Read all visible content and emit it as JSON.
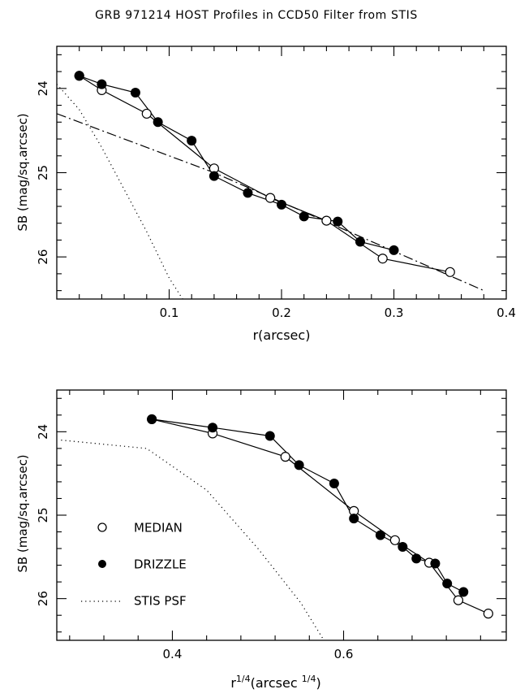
{
  "title": "GRB 971214 HOST Profiles in CCD50 Filter from STIS",
  "chart_data": [
    {
      "type": "line",
      "xlabel": "r(arcsec)",
      "ylabel": "SB (mag/sq.arcsec)",
      "xlim": [
        0.0,
        0.4
      ],
      "ylim": [
        26.5,
        23.5
      ],
      "y_inverted": true,
      "xticks": [
        0.1,
        0.2,
        0.3,
        0.4
      ],
      "xtick_labels": [
        "0.1",
        "0.2",
        "0.3",
        "0.4"
      ],
      "yticks": [
        24,
        25,
        26
      ],
      "ytick_labels": [
        "24",
        "25",
        "26"
      ],
      "series": [
        {
          "name": "MEDIAN",
          "marker": "open-circle",
          "x": [
            0.02,
            0.04,
            0.08,
            0.14,
            0.19,
            0.24,
            0.29,
            0.35
          ],
          "y": [
            23.85,
            24.02,
            24.3,
            24.95,
            25.3,
            25.57,
            26.02,
            26.18
          ]
        },
        {
          "name": "DRIZZLE",
          "marker": "filled-circle",
          "x": [
            0.02,
            0.04,
            0.07,
            0.09,
            0.12,
            0.14,
            0.17,
            0.2,
            0.22,
            0.25,
            0.27,
            0.3
          ],
          "y": [
            23.85,
            23.95,
            24.05,
            24.4,
            24.62,
            25.04,
            25.24,
            25.38,
            25.52,
            25.58,
            25.82,
            25.92
          ]
        },
        {
          "name": "STIS PSF",
          "style": "dotted",
          "x": [
            0.0,
            0.02,
            0.04,
            0.06,
            0.08,
            0.1,
            0.112
          ],
          "y": [
            23.95,
            24.25,
            24.7,
            25.2,
            25.7,
            26.25,
            26.5
          ]
        },
        {
          "style": "dash-dot",
          "x": [
            0.0,
            0.14,
            0.38
          ],
          "y": [
            24.3,
            25.0,
            26.4
          ]
        }
      ]
    },
    {
      "type": "line",
      "xlabel_base": "r",
      "xlabel_sup": "1/4",
      "xlabel_main": "(arcsec ",
      "xlabel_unit_sup": "1/4",
      "xlabel_end": ")",
      "ylabel": "SB (mag/sq.arcsec)",
      "xlim": [
        0.265,
        0.79
      ],
      "ylim": [
        26.5,
        23.5
      ],
      "y_inverted": true,
      "xticks": [
        0.4,
        0.6
      ],
      "xtick_labels": [
        "0.4",
        "0.6"
      ],
      "yticks": [
        24,
        25,
        26
      ],
      "ytick_labels": [
        "24",
        "25",
        "26"
      ],
      "series": [
        {
          "name": "MEDIAN",
          "marker": "open-circle",
          "x": [
            0.376,
            0.447,
            0.532,
            0.612,
            0.66,
            0.7,
            0.734,
            0.769
          ],
          "y": [
            23.85,
            24.02,
            24.3,
            24.95,
            25.3,
            25.57,
            26.02,
            26.18
          ]
        },
        {
          "name": "DRIZZLE",
          "marker": "filled-circle",
          "x": [
            0.376,
            0.447,
            0.514,
            0.548,
            0.589,
            0.612,
            0.643,
            0.669,
            0.685,
            0.707,
            0.721,
            0.74
          ],
          "y": [
            23.85,
            23.95,
            24.05,
            24.4,
            24.62,
            25.04,
            25.24,
            25.38,
            25.52,
            25.58,
            25.82,
            25.92
          ]
        },
        {
          "name": "STIS PSF",
          "style": "dotted",
          "x": [
            0.27,
            0.3,
            0.37,
            0.44,
            0.5,
            0.55,
            0.577
          ],
          "y": [
            24.1,
            24.13,
            24.2,
            24.7,
            25.4,
            26.05,
            26.5
          ]
        }
      ],
      "legend": [
        {
          "label": "MEDIAN",
          "marker": "open-circle"
        },
        {
          "label": "DRIZZLE",
          "marker": "filled-circle"
        },
        {
          "label": "STIS PSF",
          "marker": "dotted-line"
        }
      ]
    }
  ]
}
